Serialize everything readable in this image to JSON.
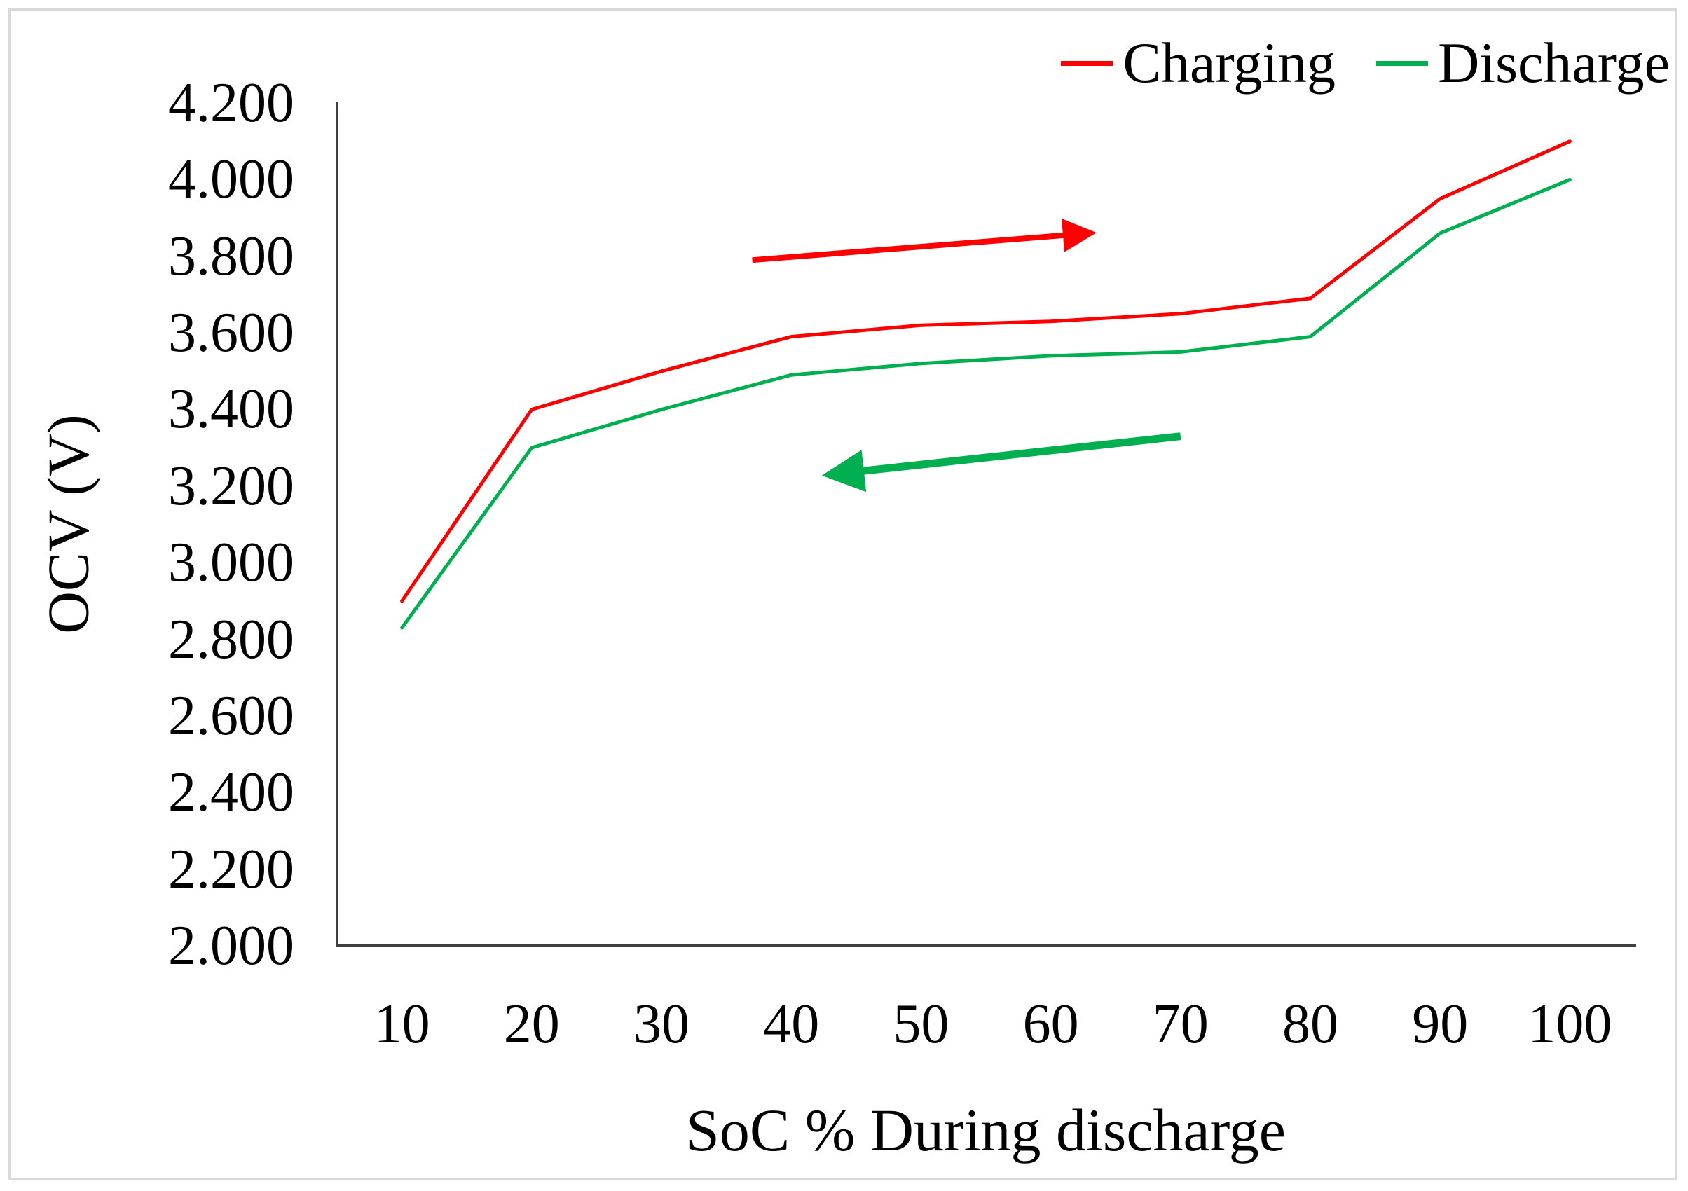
{
  "figure": {
    "background": "#ffffff",
    "border_color": "#d9d9d9",
    "axis_color": "#3f3f3f",
    "text_color": "#000000"
  },
  "legend": {
    "position": "top-right",
    "items": [
      {
        "label": "Charging",
        "color": "#ff0000"
      },
      {
        "label": "Discharge",
        "color": "#00b050"
      }
    ]
  },
  "chart_data": {
    "type": "line",
    "title": "",
    "xlabel": "SoC % During discharge",
    "ylabel": "OCV (V)",
    "categories": [
      10,
      20,
      30,
      40,
      50,
      60,
      70,
      80,
      90,
      100
    ],
    "series": [
      {
        "name": "Charging",
        "color": "#ff0000",
        "stroke_width": 5,
        "values": [
          2.9,
          3.4,
          3.5,
          3.59,
          3.62,
          3.63,
          3.65,
          3.69,
          3.95,
          4.1
        ]
      },
      {
        "name": "Discharge",
        "color": "#00b050",
        "stroke_width": 5,
        "values": [
          2.83,
          3.3,
          3.4,
          3.49,
          3.52,
          3.54,
          3.55,
          3.59,
          3.86,
          4.0
        ]
      }
    ],
    "y_axis": {
      "min": 2.0,
      "max": 4.2,
      "step": 0.2,
      "tick_labels": [
        "4.200",
        "4.000",
        "3.800",
        "3.600",
        "3.400",
        "3.200",
        "3.000",
        "2.800",
        "2.600",
        "2.400",
        "2.200",
        "2.000"
      ],
      "tick_values": [
        4.2,
        4.0,
        3.8,
        3.6,
        3.4,
        3.2,
        3.0,
        2.8,
        2.6,
        2.4,
        2.2,
        2.0
      ]
    },
    "x_axis": {
      "tick_labels": [
        "10",
        "20",
        "30",
        "40",
        "50",
        "60",
        "70",
        "80",
        "90",
        "100"
      ]
    },
    "grid": false,
    "annotations": [
      {
        "name": "charging-direction-arrow",
        "shape": "arrow",
        "color": "#ff0000",
        "stroke_width": 8,
        "head_size": 6,
        "from": {
          "soc": 37,
          "v": 3.79
        },
        "to": {
          "soc": 63,
          "v": 3.86
        }
      },
      {
        "name": "discharge-direction-arrow",
        "shape": "arrow",
        "color": "#00b050",
        "stroke_width": 11,
        "head_size": 5.5,
        "from": {
          "soc": 70,
          "v": 3.33
        },
        "to": {
          "soc": 43,
          "v": 3.23
        }
      }
    ]
  }
}
